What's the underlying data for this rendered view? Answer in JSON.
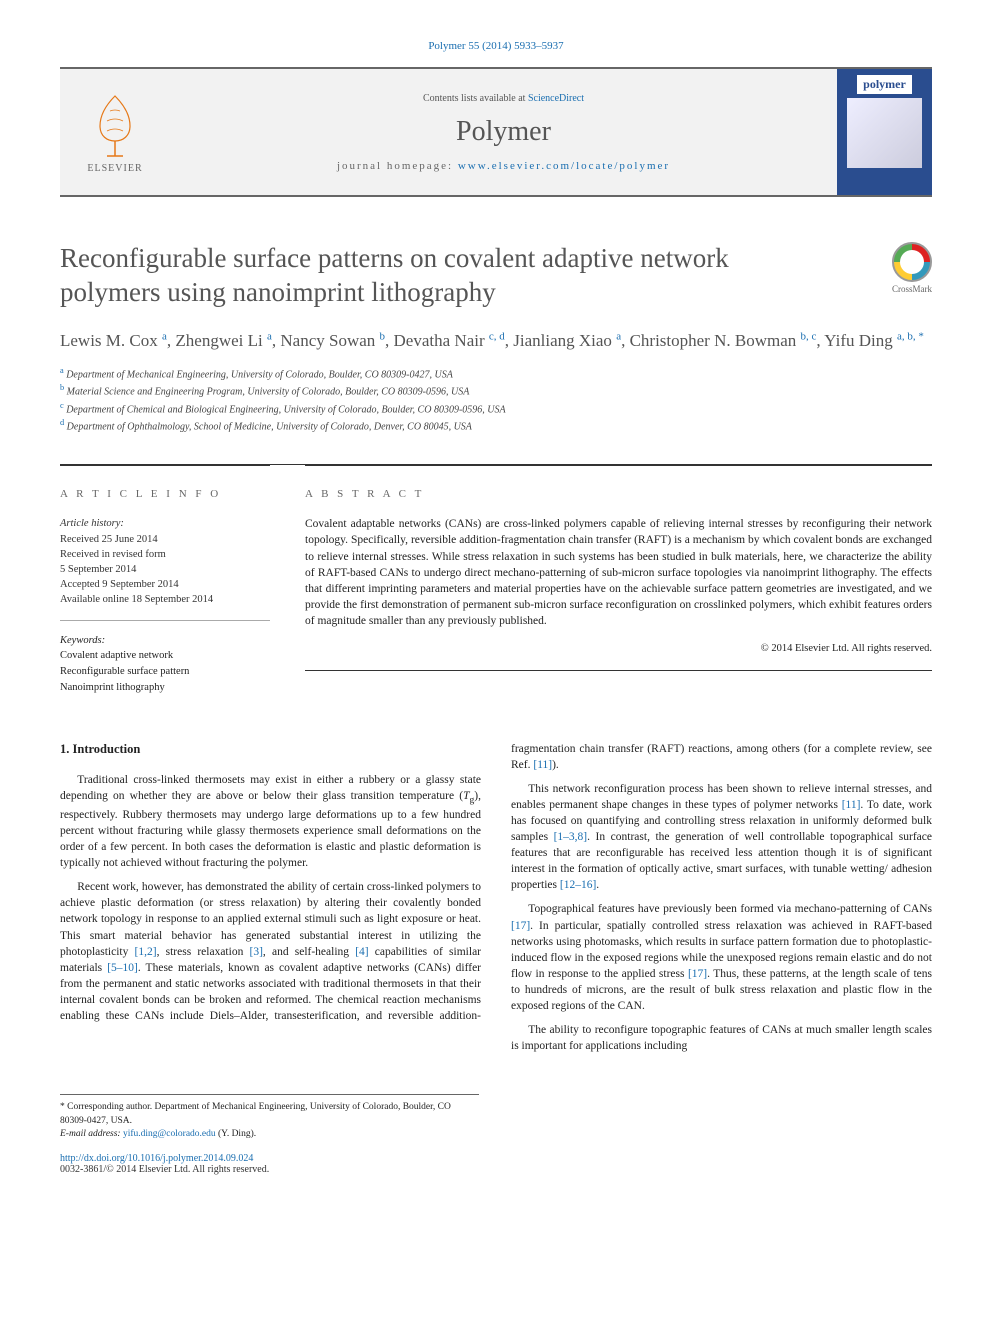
{
  "citation": "Polymer 55 (2014) 5933–5937",
  "header": {
    "contents_prefix": "Contents lists available at ",
    "contents_link": "ScienceDirect",
    "journal_name": "Polymer",
    "homepage_prefix": "journal homepage: ",
    "homepage_url": "www.elsevier.com/locate/polymer",
    "elsevier_label": "ELSEVIER",
    "cover_label": "polymer"
  },
  "title": "Reconfigurable surface patterns on covalent adaptive network polymers using nanoimprint lithography",
  "crossmark_label": "CrossMark",
  "authors_html": "Lewis M. Cox <sup>a</sup>, Zhengwei Li <sup>a</sup>, Nancy Sowan <sup>b</sup>, Devatha Nair <sup>c, d</sup>, Jianliang Xiao <sup>a</sup>, Christopher N. Bowman <sup>b, c</sup>, Yifu Ding <sup>a, b, *</sup>",
  "affiliations": [
    {
      "sup": "a",
      "text": "Department of Mechanical Engineering, University of Colorado, Boulder, CO 80309-0427, USA"
    },
    {
      "sup": "b",
      "text": "Material Science and Engineering Program, University of Colorado, Boulder, CO 80309-0596, USA"
    },
    {
      "sup": "c",
      "text": "Department of Chemical and Biological Engineering, University of Colorado, Boulder, CO 80309-0596, USA"
    },
    {
      "sup": "d",
      "text": "Department of Ophthalmology, School of Medicine, University of Colorado, Denver, CO 80045, USA"
    }
  ],
  "article_info": {
    "heading": "A R T I C L E   I N F O",
    "history_label": "Article history:",
    "history": [
      "Received 25 June 2014",
      "Received in revised form",
      "5 September 2014",
      "Accepted 9 September 2014",
      "Available online 18 September 2014"
    ],
    "keywords_label": "Keywords:",
    "keywords": [
      "Covalent adaptive network",
      "Reconfigurable surface pattern",
      "Nanoimprint lithography"
    ]
  },
  "abstract": {
    "heading": "A B S T R A C T",
    "text": "Covalent adaptable networks (CANs) are cross-linked polymers capable of relieving internal stresses by reconfiguring their network topology. Specifically, reversible addition-fragmentation chain transfer (RAFT) is a mechanism by which covalent bonds are exchanged to relieve internal stresses. While stress relaxation in such systems has been studied in bulk materials, here, we characterize the ability of RAFT-based CANs to undergo direct mechano-patterning of sub-micron surface topologies via nanoimprint lithography. The effects that different imprinting parameters and material properties have on the achievable surface pattern geometries are investigated, and we provide the first demonstration of permanent sub-micron surface reconfiguration on crosslinked polymers, which exhibit features orders of magnitude smaller than any previously published.",
    "copyright": "© 2014 Elsevier Ltd. All rights reserved."
  },
  "body": {
    "section_heading": "1.  Introduction",
    "paragraphs": [
      "Traditional cross-linked thermosets may exist in either a rubbery or a glassy state depending on whether they are above or below their glass transition temperature (<span class=\"ital\">T</span><sub>g</sub>), respectively. Rubbery thermosets may undergo large deformations up to a few hundred percent without fracturing while glassy thermosets experience small deformations on the order of a few percent. In both cases the deformation is elastic and plastic deformation is typically not achieved without fracturing the polymer.",
      "Recent work, however, has demonstrated the ability of certain cross-linked polymers to achieve plastic deformation (or stress relaxation) by altering their covalently bonded network topology in response to an applied external stimuli such as light exposure or heat. This smart material behavior has generated substantial interest in utilizing the photoplasticity <a class=\"ref\">[1,2]</a>, stress relaxation <a class=\"ref\">[3]</a>, and self-healing <a class=\"ref\">[4]</a> capabilities of similar materials <a class=\"ref\">[5–10]</a>. These materials, known as covalent adaptive networks (CANs) differ from the permanent and static networks associated with traditional thermosets in that their internal covalent bonds can be broken and reformed. The chemical reaction mechanisms enabling these CANs include Diels–Alder, transesterification, and reversible addition-fragmentation chain transfer (RAFT) reactions, among others (for a complete review, see Ref. <a class=\"ref\">[11]</a>).",
      "This network reconfiguration process has been shown to relieve internal stresses, and enables permanent shape changes in these types of polymer networks <a class=\"ref\">[11]</a>. To date, work has focused on quantifying and controlling stress relaxation in uniformly deformed bulk samples <a class=\"ref\">[1–3,8]</a>. In contrast, the generation of well controllable topographical surface features that are reconfigurable has received less attention though it is of significant interest in the formation of optically active, smart surfaces, with tunable wetting/ adhesion properties <a class=\"ref\">[12–16]</a>.",
      "Topographical features have previously been formed via mechano-patterning of CANs <a class=\"ref\">[17]</a>. In particular, spatially controlled stress relaxation was achieved in RAFT-based networks using photomasks, which results in surface pattern formation due to photoplastic-induced flow in the exposed regions while the unexposed regions remain elastic and do not flow in response to the applied stress <a class=\"ref\">[17]</a>. Thus, these patterns, at the length scale of tens to hundreds of microns, are the result of bulk stress relaxation and plastic flow in the exposed regions of the CAN.",
      "The ability to reconfigure topographic features of CANs at much smaller length scales is important for applications including"
    ]
  },
  "footnote": {
    "corr": "* Corresponding author. Department of Mechanical Engineering, University of Colorado, Boulder, CO 80309-0427, USA.",
    "email_label": "E-mail address:",
    "email": "yifu.ding@colorado.edu",
    "email_name": "(Y. Ding)."
  },
  "doi": "http://dx.doi.org/10.1016/j.polymer.2014.09.024",
  "issn_line": "0032-3861/© 2014 Elsevier Ltd. All rights reserved.",
  "colors": {
    "link": "#1a6eb0",
    "text_gray": "#555",
    "rule": "#333",
    "cover_blue": "#2a4d8f"
  }
}
